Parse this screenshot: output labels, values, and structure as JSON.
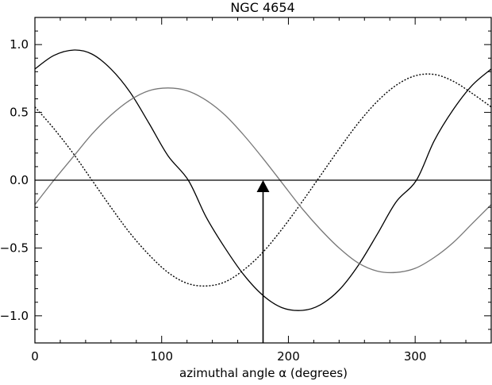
{
  "chart_data": {
    "type": "line",
    "title": "NGC 4654",
    "xlabel": "azimuthal angle α (degrees)",
    "ylabel": "",
    "xlim": [
      0,
      360
    ],
    "ylim": [
      -1.2,
      1.2
    ],
    "x_ticks": [
      0,
      100,
      200,
      300
    ],
    "x_tick_labels": [
      "0",
      "100",
      "200",
      "300"
    ],
    "x_minor_tick_step": 20,
    "y_ticks": [
      -1.0,
      -0.5,
      0.0,
      0.5,
      1.0
    ],
    "y_tick_labels": [
      "−1.0",
      "−0.5",
      "0.0",
      "0.5",
      "1.0"
    ],
    "y_minor_tick_step": 0.1,
    "grid": false,
    "series": [
      {
        "style": "solid",
        "color": "#000000",
        "x": [
          0,
          15,
          31,
          45,
          60,
          75,
          90,
          105,
          121,
          135,
          150,
          165,
          180,
          195,
          211,
          225,
          240,
          255,
          270,
          285,
          301,
          315,
          330,
          345,
          360
        ],
        "y": [
          0.82,
          0.92,
          0.96,
          0.93,
          0.82,
          0.65,
          0.42,
          0.18,
          0.0,
          -0.27,
          -0.5,
          -0.7,
          -0.85,
          -0.94,
          -0.96,
          -0.92,
          -0.81,
          -0.63,
          -0.4,
          -0.16,
          0.0,
          0.29,
          0.52,
          0.7,
          0.82
        ]
      },
      {
        "style": "dotted",
        "color": "#000000",
        "x": [
          0,
          15,
          30,
          45,
          60,
          75,
          90,
          105,
          120,
          135,
          150,
          165,
          180,
          195,
          210,
          225,
          240,
          255,
          270,
          285,
          300,
          315,
          330,
          345,
          360
        ],
        "y": [
          0.54,
          0.38,
          0.2,
          0.0,
          -0.2,
          -0.39,
          -0.55,
          -0.68,
          -0.76,
          -0.78,
          -0.75,
          -0.66,
          -0.53,
          -0.36,
          -0.17,
          0.03,
          0.23,
          0.42,
          0.58,
          0.7,
          0.77,
          0.78,
          0.73,
          0.64,
          0.54
        ]
      },
      {
        "style": "solid",
        "color": "#777777",
        "x": [
          0,
          15,
          30,
          45,
          60,
          75,
          90,
          105,
          120,
          135,
          150,
          165,
          180,
          195,
          210,
          225,
          240,
          255,
          270,
          285,
          300,
          315,
          330,
          345,
          360
        ],
        "y": [
          -0.18,
          0.0,
          0.17,
          0.34,
          0.48,
          0.59,
          0.66,
          0.68,
          0.66,
          0.59,
          0.48,
          0.33,
          0.16,
          -0.02,
          -0.2,
          -0.36,
          -0.5,
          -0.61,
          -0.67,
          -0.68,
          -0.65,
          -0.57,
          -0.46,
          -0.32,
          -0.18
        ]
      }
    ],
    "reference_line": {
      "y": 0.0
    },
    "annotation": {
      "type": "arrow",
      "x": 180,
      "y_from": -1.2,
      "y_to": 0.0
    }
  }
}
